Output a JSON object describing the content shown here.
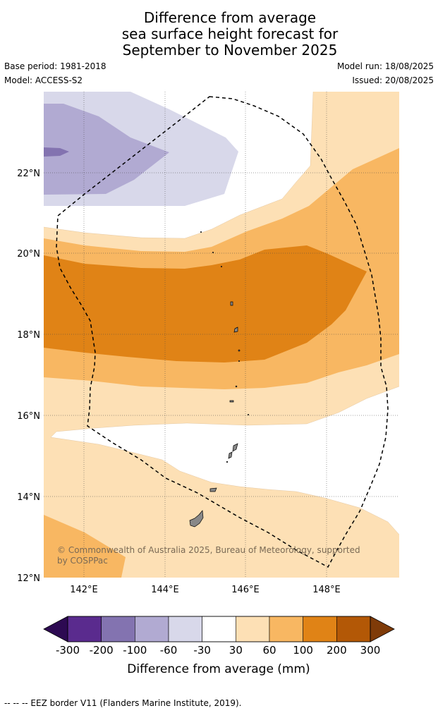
{
  "title": {
    "line1": "Difference from average",
    "line2": "sea surface height forecast for",
    "line3": "September to November 2025"
  },
  "meta": {
    "base_period": "Base period: 1981-2018",
    "model": "Model: ACCESS-S2",
    "model_run": "Model run: 18/08/2025",
    "issued": "Issued: 20/08/2025"
  },
  "map": {
    "lat_labels": [
      "22°N",
      "20°N",
      "18°N",
      "16°N",
      "14°N",
      "12°N"
    ],
    "lon_labels": [
      "142°E",
      "144°E",
      "146°E",
      "148°E"
    ],
    "copyright": "© Commonwealth of Australia 2025, Bureau of Meteorology, supported by COSPPac"
  },
  "colorbar": {
    "tick_labels": [
      "-300",
      "-200",
      "-100",
      "-60",
      "-30",
      "30",
      "60",
      "100",
      "200",
      "300"
    ],
    "label": "Difference from average (mm)",
    "colors": [
      "#2d0a52",
      "#5a2b8e",
      "#8373b0",
      "#b1aad2",
      "#d8d8ea",
      "#ffffff",
      "#fde0b5",
      "#f8b762",
      "#e08316",
      "#b35806",
      "#7f3b08"
    ]
  },
  "footnote": "--  --  -- EEZ border V11 (Flanders Marine Institute, 2019)."
}
